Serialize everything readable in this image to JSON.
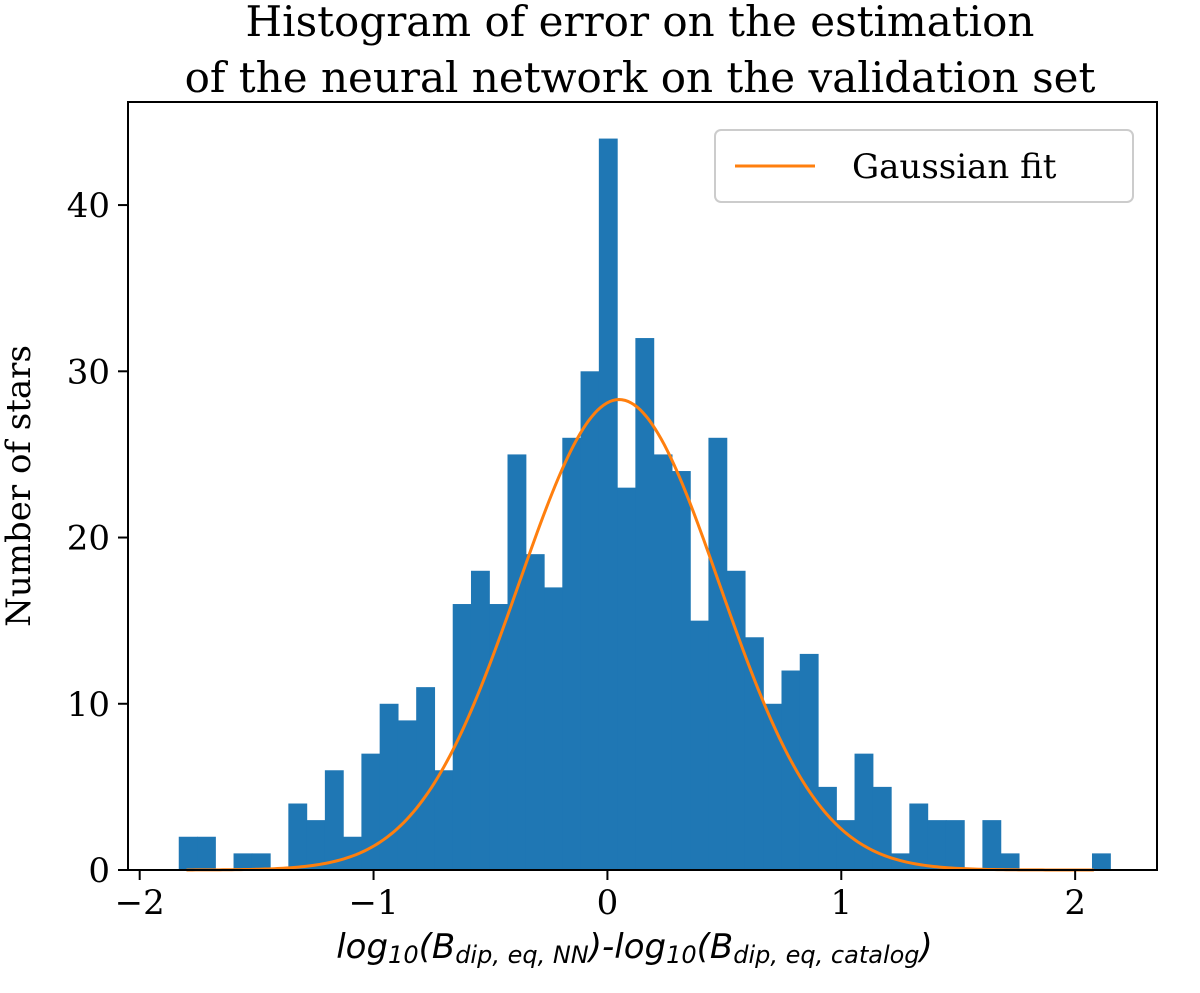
{
  "chart_data": {
    "type": "bar",
    "title_lines": [
      "Histogram of error on the estimation",
      "of the neural network on the validation set"
    ],
    "ylabel": "Number of stars",
    "xlabel_parts": [
      {
        "text": "log",
        "sub": false
      },
      {
        "text": "10",
        "sub": true
      },
      {
        "text": "(B",
        "sub": false
      },
      {
        "text": "dip, eq, NN",
        "sub": true
      },
      {
        "text": ")-log",
        "sub": false
      },
      {
        "text": "10",
        "sub": true
      },
      {
        "text": "(B",
        "sub": false
      },
      {
        "text": "dip, eq, catalog",
        "sub": true
      },
      {
        "text": ")",
        "sub": false
      }
    ],
    "xlim": [
      -2.05,
      2.35
    ],
    "ylim": [
      0,
      46.2
    ],
    "xticks": [
      {
        "value": -2,
        "label": "−2"
      },
      {
        "value": -1,
        "label": "−1"
      },
      {
        "value": 0,
        "label": "0"
      },
      {
        "value": 1,
        "label": "1"
      },
      {
        "value": 2,
        "label": "2"
      }
    ],
    "yticks": [
      {
        "value": 0,
        "label": "0"
      },
      {
        "value": 10,
        "label": "10"
      },
      {
        "value": 20,
        "label": "20"
      },
      {
        "value": 30,
        "label": "30"
      },
      {
        "value": 40,
        "label": "40"
      }
    ],
    "bin_start": -1.833,
    "bin_width": 0.0781,
    "counts": [
      2,
      2,
      0,
      1,
      1,
      0,
      4,
      3,
      6,
      2,
      7,
      10,
      9,
      11,
      6,
      16,
      18,
      16,
      25,
      19,
      17,
      26,
      30,
      44,
      23,
      32,
      25,
      24,
      15,
      26,
      18,
      14,
      10,
      12,
      13,
      5,
      3,
      7,
      5,
      1,
      4,
      3,
      3,
      0,
      3,
      1,
      0,
      0,
      0,
      0,
      1
    ],
    "bar_color": "#1f77b4",
    "series": [
      {
        "name": "Gaussian fit",
        "color": "#ff7f0e",
        "amplitude": 28.3,
        "mean": 0.05,
        "sigma": 0.43,
        "x_range": [
          -1.8,
          2.08
        ]
      }
    ],
    "legend_position": "top-right",
    "grid": false
  }
}
